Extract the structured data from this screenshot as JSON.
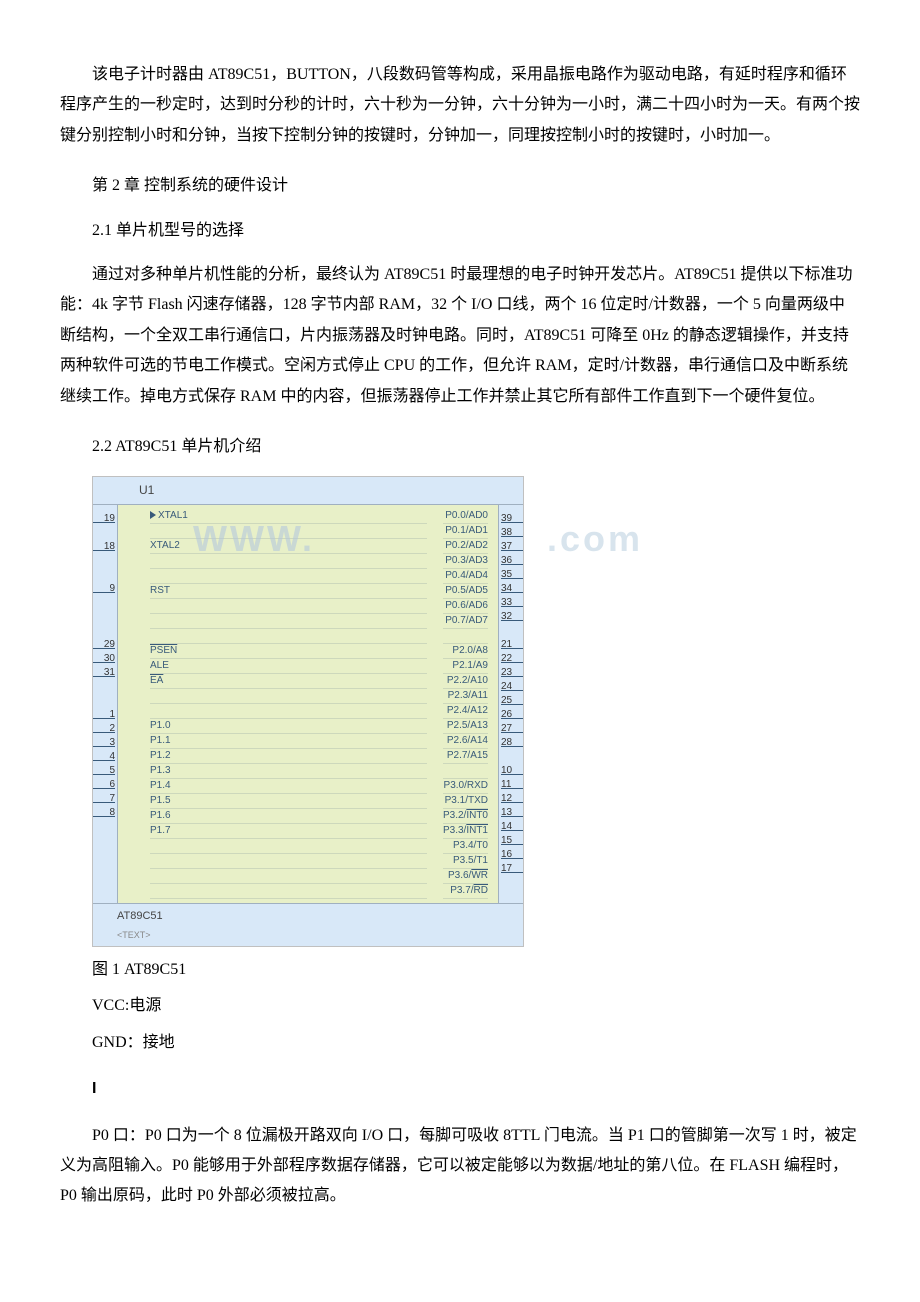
{
  "intro": {
    "p1": "该电子计时器由 AT89C51，BUTTON，八段数码管等构成，采用晶振电路作为驱动电路，有延时程序和循环程序产生的一秒定时，达到时分秒的计时，六十秒为一分钟，六十分钟为一小时，满二十四小时为一天。有两个按键分别控制小时和分钟，当按下控制分钟的按键时，分钟加一，同理按控制小时的按键时，小时加一。"
  },
  "ch2": {
    "title": "第 2 章 控制系统的硬件设计",
    "s21_title": "2.1 单片机型号的选择",
    "s21_body": "通过对多种单片机性能的分析，最终认为 AT89C51 时最理想的电子时钟开发芯片。AT89C51 提供以下标准功能：4k 字节 Flash 闪速存储器，128 字节内部 RAM，32 个 I/O 口线，两个 16 位定时/计数器，一个 5 向量两级中断结构，一个全双工串行通信口，片内振荡器及时钟电路。同时，AT89C51 可降至 0Hz 的静态逻辑操作，并支持两种软件可选的节电工作模式。空闲方式停止 CPU 的工作，但允许 RAM，定时/计数器，串行通信口及中断系统继续工作。掉电方式保存 RAM 中的内容，但振荡器停止工作并禁止其它所有部件工作直到下一个硬件复位。",
    "s22_title": "2.2 AT89C51 单片机介绍"
  },
  "chip": {
    "ref": "U1",
    "part": "AT89C51",
    "subtext": "<TEXT>",
    "watermark_left": "WWW.",
    "watermark_right": ".com",
    "left_pins": [
      {
        "num": "19",
        "label": "XTAL1",
        "arrow": true
      },
      {
        "num": "",
        "label": ""
      },
      {
        "num": "18",
        "label": "XTAL2"
      },
      {
        "num": "",
        "label": ""
      },
      {
        "num": "",
        "label": ""
      },
      {
        "num": "9",
        "label": "RST"
      },
      {
        "num": "",
        "label": ""
      },
      {
        "num": "",
        "label": ""
      },
      {
        "num": "",
        "label": ""
      },
      {
        "num": "29",
        "label": "PSEN",
        "ol": true
      },
      {
        "num": "30",
        "label": "ALE"
      },
      {
        "num": "31",
        "label": "EA",
        "ol": true
      },
      {
        "num": "",
        "label": ""
      },
      {
        "num": "",
        "label": ""
      },
      {
        "num": "1",
        "label": "P1.0"
      },
      {
        "num": "2",
        "label": "P1.1"
      },
      {
        "num": "3",
        "label": "P1.2"
      },
      {
        "num": "4",
        "label": "P1.3"
      },
      {
        "num": "5",
        "label": "P1.4"
      },
      {
        "num": "6",
        "label": "P1.5"
      },
      {
        "num": "7",
        "label": "P1.6"
      },
      {
        "num": "8",
        "label": "P1.7"
      }
    ],
    "right_pins": [
      {
        "num": "39",
        "label": "P0.0/AD0"
      },
      {
        "num": "38",
        "label": "P0.1/AD1"
      },
      {
        "num": "37",
        "label": "P0.2/AD2"
      },
      {
        "num": "36",
        "label": "P0.3/AD3"
      },
      {
        "num": "35",
        "label": "P0.4/AD4"
      },
      {
        "num": "34",
        "label": "P0.5/AD5"
      },
      {
        "num": "33",
        "label": "P0.6/AD6"
      },
      {
        "num": "32",
        "label": "P0.7/AD7"
      },
      {
        "num": "",
        "label": ""
      },
      {
        "num": "21",
        "label": "P2.0/A8"
      },
      {
        "num": "22",
        "label": "P2.1/A9"
      },
      {
        "num": "23",
        "label": "P2.2/A10"
      },
      {
        "num": "24",
        "label": "P2.3/A11"
      },
      {
        "num": "25",
        "label": "P2.4/A12"
      },
      {
        "num": "26",
        "label": "P2.5/A13"
      },
      {
        "num": "27",
        "label": "P2.6/A14"
      },
      {
        "num": "28",
        "label": "P2.7/A15"
      },
      {
        "num": "",
        "label": ""
      },
      {
        "num": "10",
        "label": "P3.0/RXD"
      },
      {
        "num": "11",
        "label": "P3.1/TXD"
      },
      {
        "num": "12",
        "label": "P3.2/INT0",
        "ol": true
      },
      {
        "num": "13",
        "label": "P3.3/INT1",
        "ol": true
      },
      {
        "num": "14",
        "label": "P3.4/T0"
      },
      {
        "num": "15",
        "label": "P3.5/T1"
      },
      {
        "num": "16",
        "label": "P3.6/WR",
        "ol": true
      },
      {
        "num": "17",
        "label": "P3.7/RD",
        "ol": true
      }
    ]
  },
  "after": {
    "fig_caption": "图 1 AT89C51",
    "vcc": "VCC:电源",
    "gnd": "GND：接地",
    "cursor": "I",
    "p0": "P0 口：P0 口为一个 8 位漏极开路双向 I/O 口，每脚可吸收 8TTL 门电流。当 P1 口的管脚第一次写 1 时，被定义为高阻输入。P0 能够用于外部程序数据存储器，它可以被定能够以为数据/地址的第八位。在 FLASH 编程时，P0 输出原码，此时 P0 外部必须被拉高。"
  },
  "colors": {
    "chip_bg": "#e8f0c8",
    "header_bg": "#d8e8f8",
    "pin_text": "#385a7a",
    "border": "#a0b0c0"
  }
}
